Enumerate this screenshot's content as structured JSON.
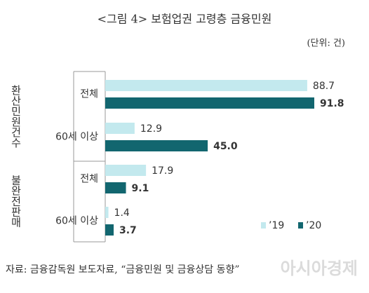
{
  "chart_data": {
    "type": "hbar",
    "title": "<그림 4> 보험업권 고령층 금융민원",
    "unit": "(단위: 건)",
    "groups": [
      "환산민원건수",
      "불완전판매"
    ],
    "categories": [
      "전체",
      "60세 이상",
      "전체",
      "60세 이상"
    ],
    "series": [
      {
        "name": "’19",
        "color": "#c3e9ee",
        "values": [
          88.7,
          12.9,
          17.9,
          1.4
        ]
      },
      {
        "name": "’20",
        "color": "#12666f",
        "values": [
          91.8,
          45.0,
          9.1,
          3.7
        ],
        "value_labels": [
          "91.8",
          "45.0",
          "9.1",
          "3.7"
        ]
      }
    ],
    "legend": "bottom-right",
    "source": "자료: 금융감독원 보도자료, “금융민원 및 금융상담 동향”",
    "watermark": "아시아경제"
  }
}
